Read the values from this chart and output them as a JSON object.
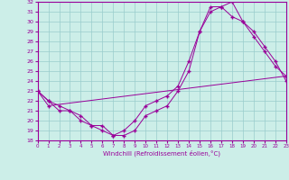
{
  "xlabel": "Windchill (Refroidissement éolien,°C)",
  "bg_color": "#cceee8",
  "line_color": "#990099",
  "grid_color": "#99cccc",
  "xlim": [
    0,
    23
  ],
  "ylim": [
    18,
    32
  ],
  "xticks": [
    0,
    1,
    2,
    3,
    4,
    5,
    6,
    7,
    8,
    9,
    10,
    11,
    12,
    13,
    14,
    15,
    16,
    17,
    18,
    19,
    20,
    21,
    22,
    23
  ],
  "yticks": [
    18,
    19,
    20,
    21,
    22,
    23,
    24,
    25,
    26,
    27,
    28,
    29,
    30,
    31,
    32
  ],
  "line1_x": [
    0,
    1,
    2,
    3,
    4,
    5,
    6,
    7,
    8,
    9,
    10,
    11,
    12,
    13,
    14,
    15,
    16,
    17,
    18,
    19,
    20,
    21,
    22,
    23
  ],
  "line1_y": [
    23,
    22,
    21,
    21,
    20,
    19.5,
    19,
    18.5,
    19,
    20,
    21.5,
    22,
    22.5,
    23.5,
    26,
    29,
    31,
    31.5,
    32,
    30,
    28.5,
    27,
    25.5,
    24.5
  ],
  "line2_x": [
    0,
    1,
    2,
    3,
    4,
    5,
    6,
    7,
    8,
    9,
    10,
    11,
    12,
    13,
    14,
    15,
    16,
    17,
    18,
    19,
    20,
    21,
    22,
    23
  ],
  "line2_y": [
    23,
    22,
    21.5,
    21,
    20.5,
    19.5,
    19.5,
    18.5,
    18.5,
    19,
    20.5,
    21,
    21.5,
    23,
    25,
    29,
    31.5,
    31.5,
    30.5,
    30,
    29,
    27.5,
    26,
    24
  ],
  "line3_x": [
    0,
    1,
    23
  ],
  "line3_y": [
    23,
    21.5,
    24.5
  ]
}
